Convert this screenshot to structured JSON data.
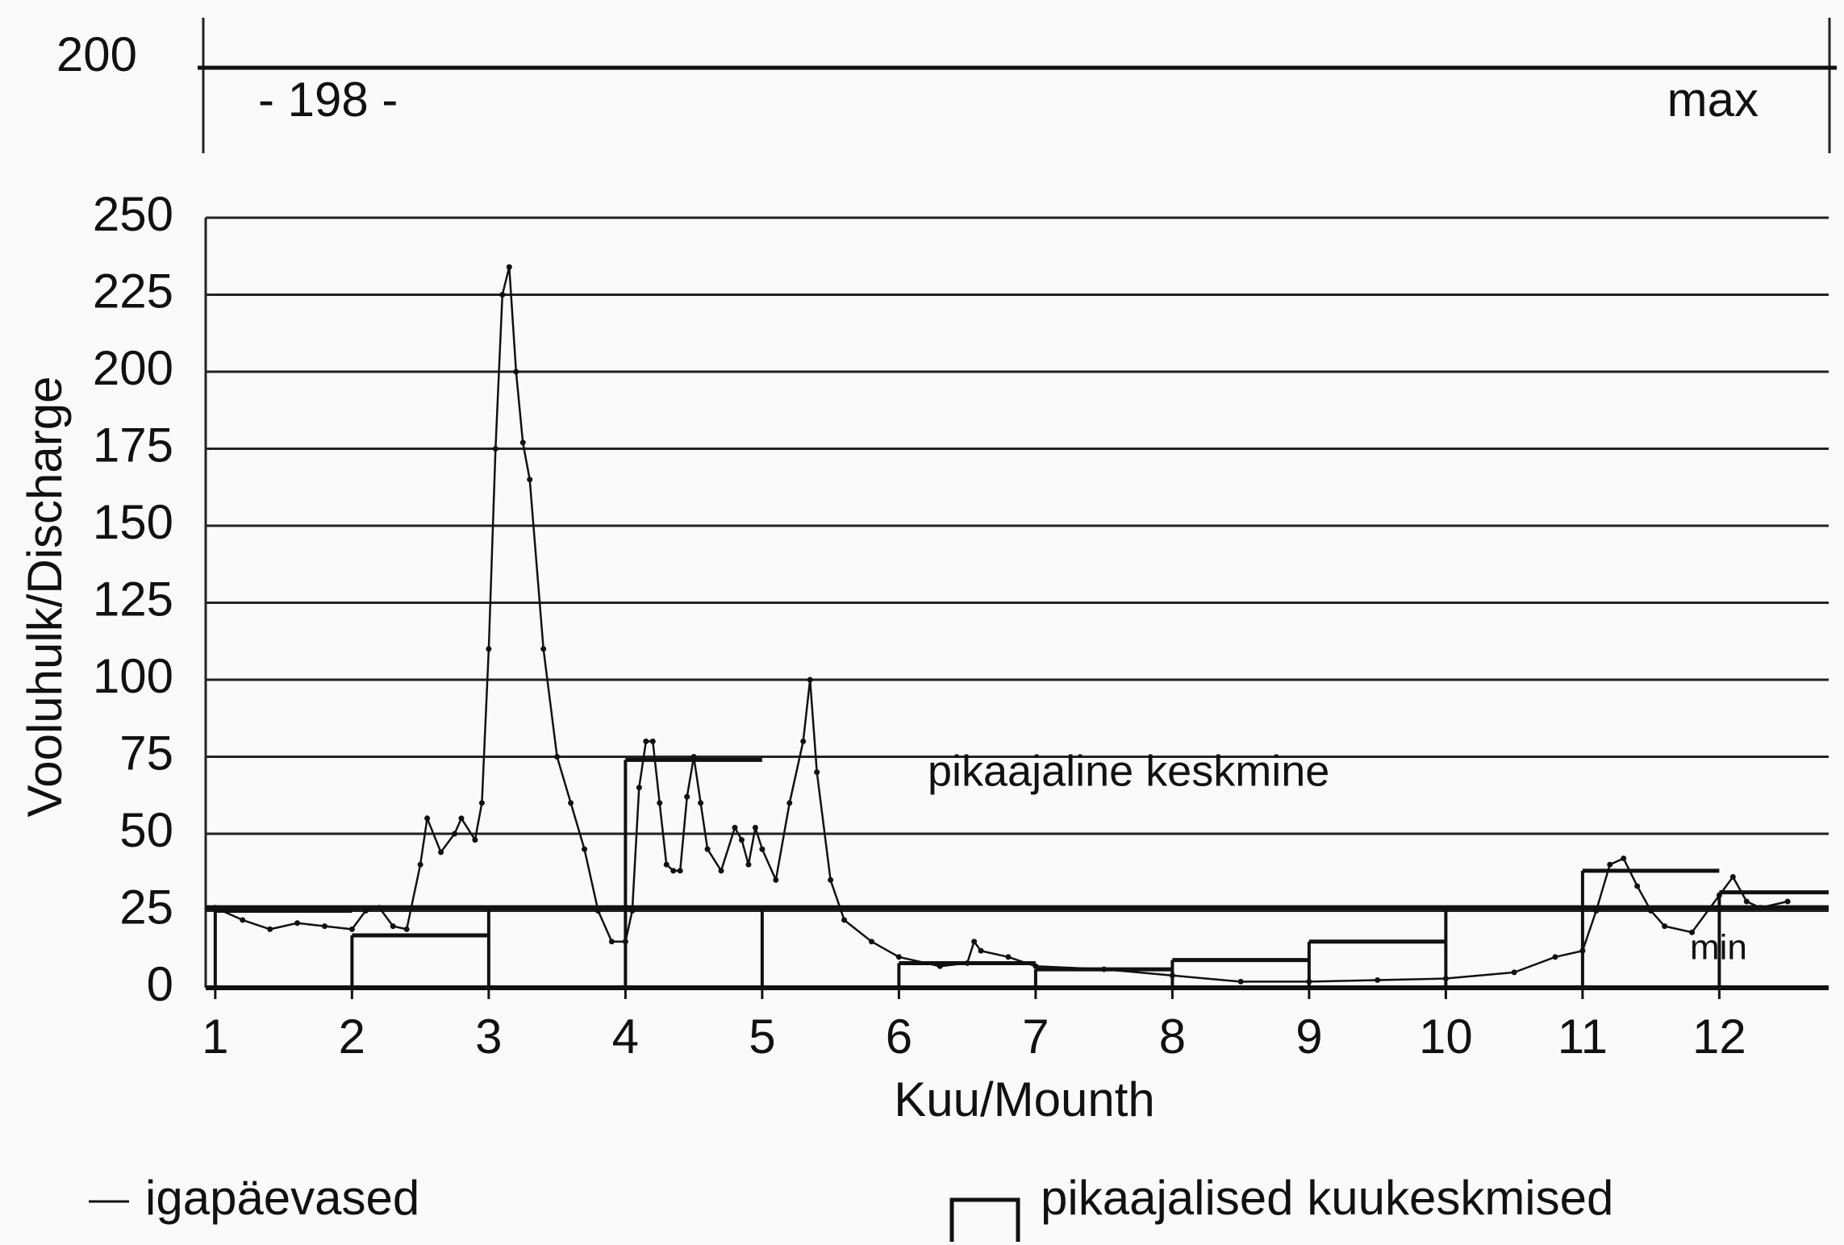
{
  "chart_data": {
    "type": "line",
    "y_label": "Vooluhulk/Discharge",
    "x_label": "Kuu/Mounth",
    "xlim": [
      0.93,
      12.8
    ],
    "xticks": [
      1,
      2,
      3,
      4,
      5,
      6,
      7,
      8,
      9,
      10,
      11,
      12
    ],
    "ylim": [
      0,
      250
    ],
    "yticks": [
      0,
      25,
      50,
      75,
      100,
      125,
      150,
      175,
      200,
      225,
      250
    ],
    "grid": true,
    "series": [
      {
        "name": "igapäevased",
        "color": "#111111",
        "x": [
          1.0,
          1.2,
          1.4,
          1.6,
          1.8,
          2.0,
          2.1,
          2.2,
          2.3,
          2.4,
          2.5,
          2.55,
          2.65,
          2.75,
          2.8,
          2.9,
          2.95,
          3.0,
          3.05,
          3.1,
          3.15,
          3.2,
          3.25,
          3.3,
          3.4,
          3.5,
          3.6,
          3.7,
          3.8,
          3.9,
          4.0,
          4.05,
          4.1,
          4.15,
          4.2,
          4.25,
          4.3,
          4.35,
          4.4,
          4.45,
          4.5,
          4.55,
          4.6,
          4.7,
          4.8,
          4.85,
          4.9,
          4.95,
          5.0,
          5.1,
          5.2,
          5.3,
          5.35,
          5.4,
          5.5,
          5.6,
          5.8,
          6.0,
          6.3,
          6.5,
          6.55,
          6.6,
          6.8,
          7.0,
          7.5,
          8.0,
          8.5,
          9.0,
          9.5,
          10.0,
          10.5,
          10.8,
          11.0,
          11.1,
          11.2,
          11.3,
          11.4,
          11.5,
          11.6,
          11.8,
          12.0,
          12.1,
          12.2,
          12.3,
          12.5
        ],
        "values": [
          26,
          22,
          19,
          21,
          20,
          19,
          25,
          26,
          20,
          19,
          40,
          55,
          44,
          50,
          55,
          48,
          60,
          110,
          175,
          225,
          234,
          200,
          177,
          165,
          110,
          75,
          60,
          45,
          25,
          15,
          15,
          25,
          65,
          80,
          80,
          60,
          40,
          38,
          38,
          62,
          75,
          60,
          45,
          38,
          52,
          48,
          40,
          52,
          45,
          35,
          60,
          80,
          100,
          70,
          35,
          22,
          15,
          10,
          7,
          8,
          15,
          12,
          10,
          7,
          6,
          4,
          2,
          2,
          2.5,
          3,
          5,
          10,
          12,
          25,
          40,
          42,
          33,
          25,
          20,
          18,
          30,
          36,
          28,
          26,
          28
        ]
      },
      {
        "name": "pikaajalised kuukeskmised",
        "color": "#111111",
        "step": true,
        "x": [
          1,
          2,
          3,
          4,
          5,
          6,
          7,
          8,
          9,
          10,
          11,
          12
        ],
        "values": [
          25,
          17,
          26,
          74,
          26,
          8,
          6,
          9,
          15,
          26,
          38,
          31
        ]
      }
    ],
    "long_term_mean": {
      "label": "pikaajaline keskmine",
      "value": 26
    },
    "min_label": "min",
    "max_panel": {
      "ytick": 200,
      "value": 198,
      "value_label": "- 198 -",
      "label": "max"
    }
  }
}
